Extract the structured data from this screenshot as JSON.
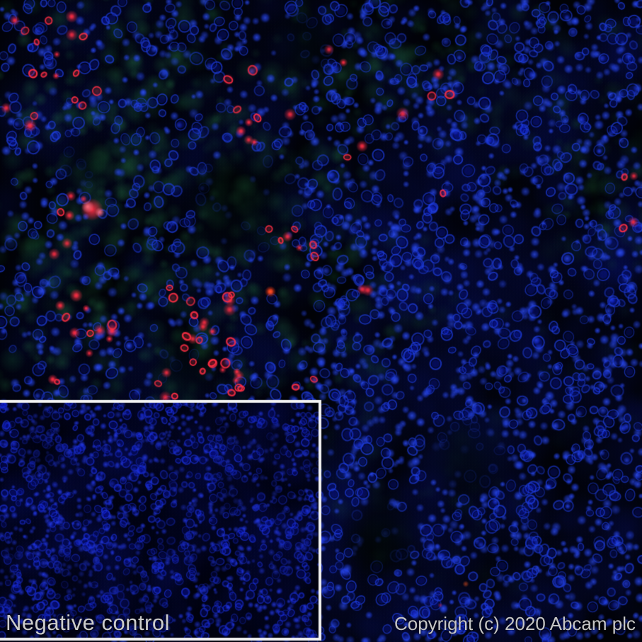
{
  "figure": {
    "kind": "immunofluorescence micrograph",
    "background_color": "#010206",
    "stain_colors": {
      "nuclei_blue": "#1e3ce1",
      "diffuse_green": "#2e8f50",
      "puncta_red": "#ff2e44",
      "puncta_hot_core": "#ff7080",
      "solid_orange_dot": "#ff3d12"
    }
  },
  "inset": {
    "label": "Negative control",
    "border_color": "#f2f2f2",
    "background_color": "#00010a"
  },
  "footer": {
    "copyright": "Copyright (c) 2020 Abcam plc"
  },
  "label_text_color": "#cccccc"
}
